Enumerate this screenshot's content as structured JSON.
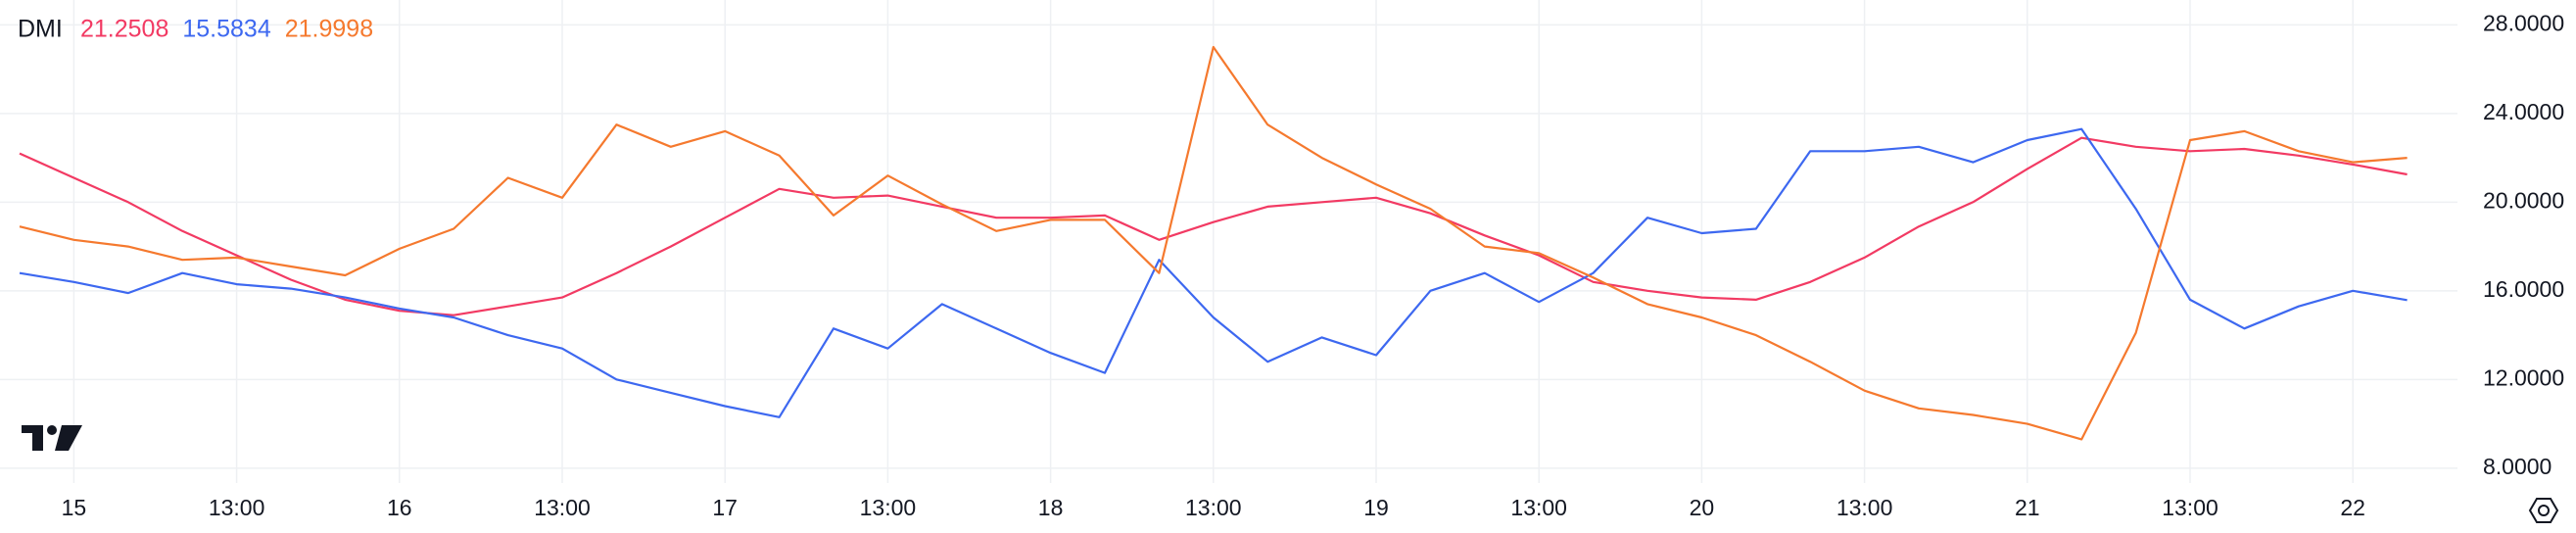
{
  "chart_data": {
    "type": "line",
    "title": "DMI",
    "categories": [
      null,
      "15",
      null,
      null,
      "13:00",
      null,
      null,
      "16",
      null,
      null,
      "13:00",
      null,
      null,
      "17",
      null,
      null,
      "13:00",
      null,
      null,
      "18",
      null,
      null,
      "13:00",
      null,
      null,
      "19",
      null,
      null,
      "13:00",
      null,
      null,
      "20",
      null,
      null,
      "13:00",
      null,
      null,
      "21",
      null,
      null,
      "13:00",
      null,
      null,
      "22",
      null
    ],
    "series": [
      {
        "color": "#f23a63",
        "values": [
          22.2,
          21.1,
          20.0,
          18.7,
          17.6,
          16.5,
          15.6,
          15.1,
          14.9,
          15.3,
          15.7,
          16.8,
          18.0,
          19.3,
          20.6,
          20.2,
          20.3,
          19.8,
          19.3,
          19.3,
          19.4,
          18.3,
          19.1,
          19.8,
          20.0,
          20.2,
          19.5,
          18.5,
          17.6,
          16.4,
          16.0,
          15.7,
          15.6,
          16.4,
          17.5,
          18.9,
          20.0,
          21.5,
          22.9,
          22.5,
          22.3,
          22.4,
          22.1,
          21.7,
          21.2508
        ]
      },
      {
        "color": "#3d68f0",
        "values": [
          16.8,
          16.4,
          15.9,
          16.8,
          16.3,
          16.1,
          15.7,
          15.2,
          14.8,
          14.0,
          13.4,
          12.0,
          11.4,
          10.8,
          10.3,
          14.3,
          13.4,
          15.4,
          14.3,
          13.2,
          12.3,
          17.4,
          14.8,
          12.8,
          13.9,
          13.1,
          16.0,
          16.8,
          15.5,
          16.8,
          19.3,
          18.6,
          18.8,
          22.3,
          22.3,
          22.5,
          21.8,
          22.8,
          23.3,
          19.7,
          15.6,
          14.3,
          15.3,
          16.0,
          15.5834
        ]
      },
      {
        "color": "#f5792e",
        "values": [
          18.9,
          18.3,
          18.0,
          17.4,
          17.5,
          17.1,
          16.7,
          17.9,
          18.8,
          21.1,
          20.2,
          23.5,
          22.5,
          23.2,
          22.1,
          19.4,
          21.2,
          19.9,
          18.7,
          19.2,
          19.2,
          16.8,
          27.0,
          23.5,
          22.0,
          20.8,
          19.7,
          18.0,
          17.7,
          16.6,
          15.4,
          14.8,
          14.0,
          12.8,
          11.5,
          10.7,
          10.4,
          10.0,
          9.3,
          14.1,
          22.8,
          23.2,
          22.3,
          21.8,
          21.9998
        ]
      }
    ],
    "ylim": [
      7.33,
      29.12
    ],
    "yticks": [
      {
        "value": 8,
        "label": "8.0000"
      },
      {
        "value": 12,
        "label": "12.0000"
      },
      {
        "value": 16,
        "label": "16.0000"
      },
      {
        "value": 20,
        "label": "20.0000"
      },
      {
        "value": 24,
        "label": "24.0000"
      },
      {
        "value": 28,
        "label": "28.0000"
      }
    ],
    "grid": true
  }
}
